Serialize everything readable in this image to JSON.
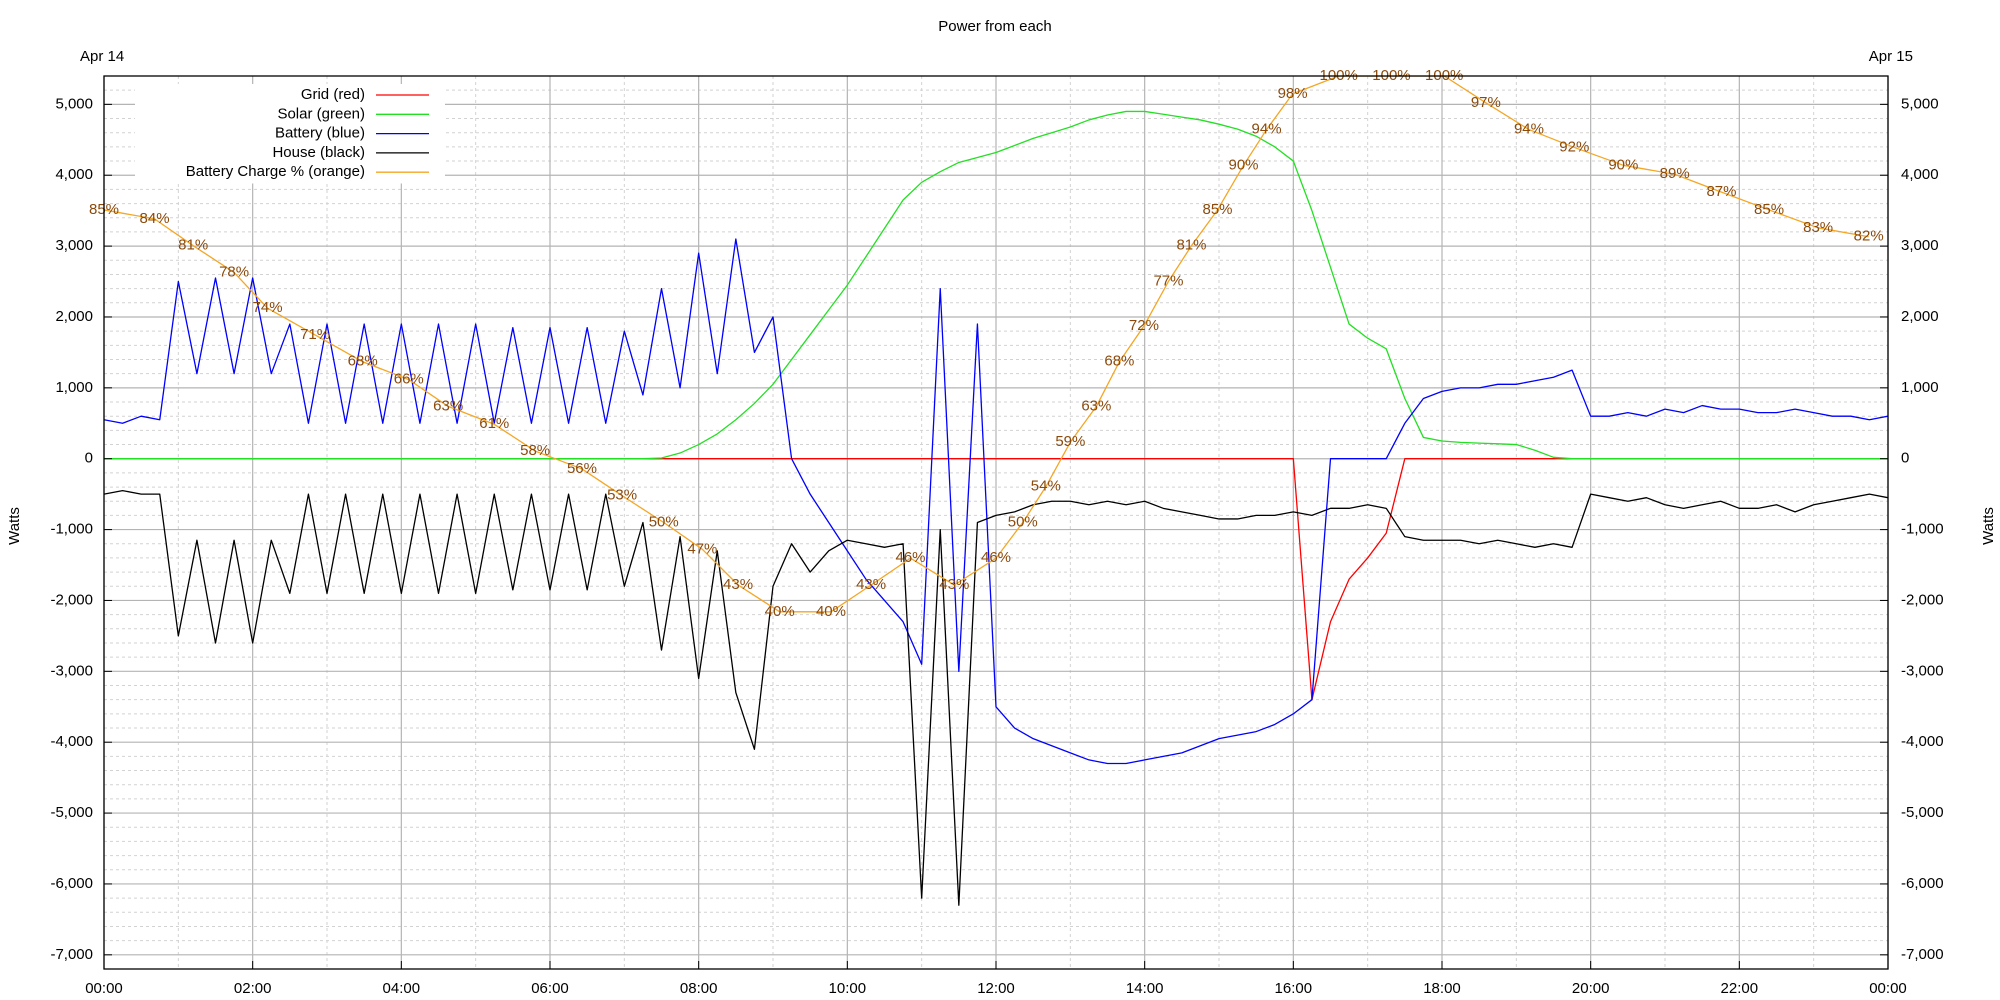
{
  "chart_data": {
    "type": "line",
    "title": "Power from each",
    "annotations": [
      "Apr 14",
      "Apr 15"
    ],
    "ylabel": "Watts",
    "y2label": "Watts",
    "xlim": [
      0,
      24
    ],
    "xticks": [
      {
        "value": 0,
        "label": "00:00"
      },
      {
        "value": 2,
        "label": "02:00"
      },
      {
        "value": 4,
        "label": "04:00"
      },
      {
        "value": 6,
        "label": "06:00"
      },
      {
        "value": 8,
        "label": "08:00"
      },
      {
        "value": 10,
        "label": "10:00"
      },
      {
        "value": 12,
        "label": "12:00"
      },
      {
        "value": 14,
        "label": "14:00"
      },
      {
        "value": 16,
        "label": "16:00"
      },
      {
        "value": 18,
        "label": "18:00"
      },
      {
        "value": 20,
        "label": "20:00"
      },
      {
        "value": 22,
        "label": "22:00"
      },
      {
        "value": 24,
        "label": "00:00"
      }
    ],
    "ylim": [
      -7200,
      5400
    ],
    "yticks": [
      {
        "value": -7000,
        "label": "-7,000"
      },
      {
        "value": -6000,
        "label": "-6,000"
      },
      {
        "value": -5000,
        "label": "-5,000"
      },
      {
        "value": -4000,
        "label": "-4,000"
      },
      {
        "value": -3000,
        "label": "-3,000"
      },
      {
        "value": -2000,
        "label": "-2,000"
      },
      {
        "value": -1000,
        "label": "-1,000"
      },
      0,
      {
        "value": 1000,
        "label": "1,000"
      },
      {
        "value": 2000,
        "label": "2,000"
      },
      {
        "value": 3000,
        "label": "3,000"
      },
      {
        "value": 4000,
        "label": "4,000"
      },
      {
        "value": 5000,
        "label": "5,000"
      }
    ],
    "y2lim": [
      -7200,
      5400
    ],
    "y2ticks": [
      {
        "value": -7000,
        "label": "-7,000"
      },
      {
        "value": -6000,
        "label": "-6,000"
      },
      {
        "value": -5000,
        "label": "-5,000"
      },
      {
        "value": -4000,
        "label": "-4,000"
      },
      {
        "value": -3000,
        "label": "-3,000"
      },
      {
        "value": -2000,
        "label": "-2,000"
      },
      {
        "value": -1000,
        "label": "-1,000"
      },
      0,
      {
        "value": 1000,
        "label": "1,000"
      },
      {
        "value": 2000,
        "label": "2,000"
      },
      {
        "value": 3000,
        "label": "3,000"
      },
      {
        "value": 4000,
        "label": "4,000"
      },
      {
        "value": 5000,
        "label": "5,000"
      }
    ],
    "y3lim": [
      0,
      100
    ],
    "grid": true,
    "minor_grid": true,
    "legend": "upper left",
    "x": [
      0,
      0.25,
      0.5,
      0.75,
      1,
      1.25,
      1.5,
      1.75,
      2,
      2.25,
      2.5,
      2.75,
      3,
      3.25,
      3.5,
      3.75,
      4,
      4.25,
      4.5,
      4.75,
      5,
      5.25,
      5.5,
      5.75,
      6,
      6.25,
      6.5,
      6.75,
      7,
      7.25,
      7.5,
      7.75,
      8,
      8.25,
      8.5,
      8.75,
      9,
      9.25,
      9.5,
      9.75,
      10,
      10.25,
      10.5,
      10.75,
      11,
      11.25,
      11.5,
      11.75,
      12,
      12.25,
      12.5,
      12.75,
      13,
      13.25,
      13.5,
      13.75,
      14,
      14.25,
      14.5,
      14.75,
      15,
      15.25,
      15.5,
      15.75,
      16,
      16.25,
      16.5,
      16.75,
      17,
      17.25,
      17.5,
      17.75,
      18,
      18.25,
      18.5,
      18.75,
      19,
      19.25,
      19.5,
      19.75,
      20,
      20.25,
      20.5,
      20.75,
      21,
      21.25,
      21.5,
      21.75,
      22,
      22.25,
      22.5,
      22.75,
      23,
      23.25,
      23.5,
      23.75,
      24
    ],
    "series": [
      {
        "name": "Grid (red)",
        "color": "#ff0000",
        "values": [
          0,
          0,
          0,
          0,
          0,
          0,
          0,
          0,
          0,
          0,
          0,
          0,
          0,
          0,
          0,
          0,
          0,
          0,
          0,
          0,
          0,
          0,
          0,
          0,
          0,
          0,
          0,
          0,
          0,
          0,
          0,
          0,
          0,
          0,
          0,
          0,
          0,
          0,
          0,
          0,
          0,
          0,
          0,
          0,
          0,
          0,
          0,
          0,
          0,
          0,
          0,
          0,
          0,
          0,
          0,
          0,
          0,
          0,
          0,
          0,
          0,
          0,
          0,
          0,
          0,
          -3400,
          -2300,
          -1700,
          -1400,
          -1050,
          0,
          0,
          0,
          0,
          0,
          0,
          0,
          0,
          0,
          0,
          0,
          0,
          0,
          0,
          0,
          0,
          0,
          0,
          0,
          0,
          0,
          0,
          0,
          0,
          0,
          0,
          0
        ]
      },
      {
        "name": "Solar (green)",
        "color": "#22e022",
        "values": [
          0,
          0,
          0,
          0,
          0,
          0,
          0,
          0,
          0,
          0,
          0,
          0,
          0,
          0,
          0,
          0,
          0,
          0,
          0,
          0,
          0,
          0,
          0,
          0,
          0,
          0,
          0,
          0,
          0,
          0,
          10,
          80,
          200,
          350,
          550,
          780,
          1050,
          1400,
          1750,
          2100,
          2450,
          2850,
          3250,
          3650,
          3900,
          4050,
          4180,
          4250,
          4320,
          4420,
          4520,
          4600,
          4680,
          4780,
          4850,
          4900,
          4900,
          4860,
          4820,
          4780,
          4720,
          4650,
          4550,
          4400,
          4200,
          3500,
          2700,
          1900,
          1700,
          1550,
          850,
          300,
          250,
          230,
          220,
          210,
          200,
          120,
          20,
          0,
          0,
          0,
          0,
          0,
          0,
          0,
          0,
          0,
          0,
          0,
          0,
          0,
          0,
          0,
          0,
          0,
          0
        ]
      },
      {
        "name": "Battery (blue)",
        "color": "#0000ff",
        "values": [
          550,
          500,
          600,
          550,
          2500,
          1200,
          2550,
          1200,
          2550,
          1200,
          1900,
          500,
          1900,
          500,
          1900,
          500,
          1900,
          500,
          1900,
          500,
          1900,
          500,
          1850,
          500,
          1850,
          500,
          1850,
          500,
          1800,
          900,
          2400,
          1000,
          2900,
          1200,
          3100,
          1500,
          2000,
          0,
          -500,
          -900,
          -1300,
          -1700,
          -2000,
          -2300,
          -2900,
          2400,
          -3000,
          1900,
          -3500,
          -3800,
          -3950,
          -4050,
          -4150,
          -4250,
          -4300,
          -4300,
          -4250,
          -4200,
          -4150,
          -4050,
          -3950,
          -3900,
          -3850,
          -3750,
          -3600,
          -3400,
          0,
          0,
          0,
          0,
          500,
          850,
          950,
          1000,
          1000,
          1050,
          1050,
          1100,
          1150,
          1250,
          600,
          600,
          650,
          600,
          700,
          650,
          750,
          700,
          700,
          650,
          650,
          700,
          650,
          600,
          600,
          550,
          600
        ]
      },
      {
        "name": "House (black)",
        "color": "#000000",
        "values": [
          -500,
          -450,
          -500,
          -500,
          -2500,
          -1150,
          -2600,
          -1150,
          -2600,
          -1150,
          -1900,
          -500,
          -1900,
          -500,
          -1900,
          -500,
          -1900,
          -500,
          -1900,
          -500,
          -1900,
          -500,
          -1850,
          -500,
          -1850,
          -500,
          -1850,
          -500,
          -1800,
          -900,
          -2700,
          -1100,
          -3100,
          -1300,
          -3300,
          -4100,
          -1800,
          -1200,
          -1600,
          -1300,
          -1150,
          -1200,
          -1250,
          -1200,
          -6200,
          -1000,
          -6300,
          -900,
          -800,
          -750,
          -650,
          -600,
          -600,
          -650,
          -600,
          -650,
          -600,
          -700,
          -750,
          -800,
          -850,
          -850,
          -800,
          -800,
          -750,
          -800,
          -700,
          -700,
          -650,
          -700,
          -1100,
          -1150,
          -1150,
          -1150,
          -1200,
          -1150,
          -1200,
          -1250,
          -1200,
          -1250,
          -500,
          -550,
          -600,
          -550,
          -650,
          -700,
          -650,
          -600,
          -700,
          -700,
          -650,
          -750,
          -650,
          -600,
          -550,
          -500,
          -550
        ]
      },
      {
        "name": "Battery Charge % (orange)",
        "color": "#f5a623",
        "axis": "y3",
        "label_color": "#8b4a0c",
        "x": [
          0,
          0.68,
          1.2,
          1.75,
          2.2,
          2.84,
          3.48,
          4.1,
          4.63,
          5.25,
          5.8,
          6.43,
          6.97,
          7.53,
          8.05,
          8.53,
          9.09,
          9.78,
          10.32,
          10.85,
          11.44,
          12.0,
          12.36,
          12.67,
          13.0,
          13.35,
          13.66,
          13.99,
          14.32,
          14.63,
          14.98,
          15.33,
          15.64,
          15.99,
          16.61,
          17.32,
          18.03,
          18.59,
          19.17,
          19.78,
          20.44,
          21.13,
          21.76,
          22.4,
          23.06,
          23.74
        ],
        "values": [
          85,
          84,
          81,
          78,
          74,
          71,
          68,
          66,
          63,
          61,
          58,
          56,
          53,
          50,
          47,
          43,
          40,
          40,
          43,
          46,
          43,
          46,
          50,
          54,
          59,
          63,
          68,
          72,
          77,
          81,
          85,
          90,
          94,
          98,
          100,
          100,
          100,
          97,
          94,
          92,
          90,
          89,
          87,
          85,
          83,
          82
        ],
        "value_labels": [
          "85%",
          "84%",
          "81%",
          "78%",
          "74%",
          "71%",
          "68%",
          "66%",
          "63%",
          "61%",
          "58%",
          "56%",
          "53%",
          "50%",
          "47%",
          "43%",
          "40%",
          "40%",
          "43%",
          "46%",
          "43%",
          "46%",
          "50%",
          "54%",
          "59%",
          "63%",
          "68%",
          "72%",
          "77%",
          "81%",
          "85%",
          "90%",
          "94%",
          "98%",
          "100%",
          "100%",
          "100%",
          "97%",
          "94%",
          "92%",
          "90%",
          "89%",
          "87%",
          "85%",
          "83%",
          "82%"
        ]
      }
    ]
  }
}
